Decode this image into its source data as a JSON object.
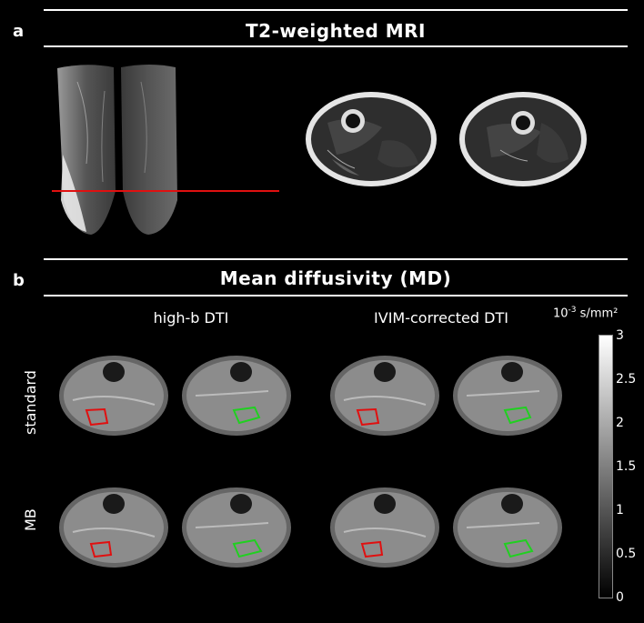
{
  "panel_a": {
    "letter": "a",
    "title": "T2-weighted MRI"
  },
  "panel_b": {
    "letter": "b",
    "title": "Mean diffusivity (MD)",
    "columns": [
      "high-b DTI",
      "IVIM-corrected DTI"
    ],
    "rows": [
      "standard",
      "MB"
    ]
  },
  "colorbar": {
    "unit_exponent": "-3",
    "unit_prefix": "10",
    "unit_suffix": " s/mm²",
    "ticks": [
      "3",
      "2.5",
      "2",
      "1.5",
      "1",
      "0.5",
      "0"
    ]
  },
  "colors": {
    "background": "#000000",
    "slice_marker": "#e01010",
    "roi_red": "#e01010",
    "roi_green": "#20d020"
  }
}
